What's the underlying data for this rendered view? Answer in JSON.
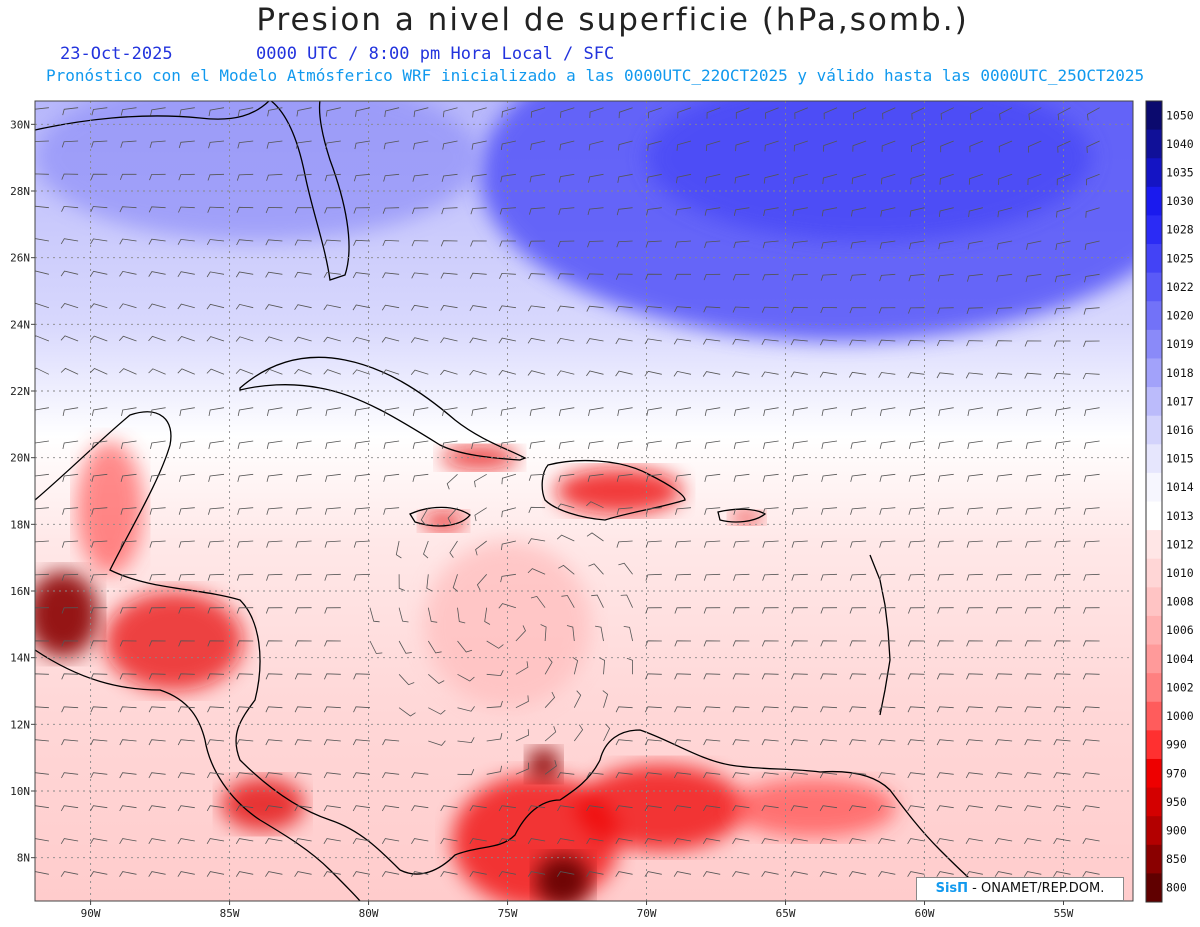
{
  "title": "Presion a nivel de superficie (hPa,somb.)",
  "date": "23-Oct-2025",
  "time_info": "0000 UTC / 8:00 pm Hora Local / SFC",
  "forecast_info": "Pronóstico con el Modelo Atmósferico WRF inicializado a las 0000UTC_22OCT2025 y válido hasta las  0000UTC_25OCT2025",
  "credit": {
    "brand": "SisΠ",
    "text": " - ONAMET/REP.DOM."
  },
  "map": {
    "lon_range": [
      -92,
      -52.5
    ],
    "lat_range": [
      6.7,
      30.7
    ],
    "lat_ticks": [
      "30N",
      "28N",
      "26N",
      "24N",
      "22N",
      "20N",
      "18N",
      "16N",
      "14N",
      "12N",
      "10N",
      "8N"
    ],
    "lon_ticks": [
      "90W",
      "85W",
      "80W",
      "75W",
      "70W",
      "65W",
      "60W",
      "55W"
    ],
    "lat_tick_values": [
      30,
      28,
      26,
      24,
      22,
      20,
      18,
      16,
      14,
      12,
      10,
      8
    ],
    "lon_tick_values": [
      -90,
      -85,
      -80,
      -75,
      -70,
      -65,
      -60,
      -55
    ],
    "grid": true,
    "low_center": {
      "lon": -75,
      "lat": 15.1
    }
  },
  "colorbar": {
    "labels": [
      "1050",
      "1040",
      "1035",
      "1030",
      "1028",
      "1025",
      "1022",
      "1020",
      "1019",
      "1018",
      "1017",
      "1016",
      "1015",
      "1014",
      "1013",
      "1012",
      "1010",
      "1008",
      "1006",
      "1004",
      "1002",
      "1000",
      "990",
      "970",
      "950",
      "900",
      "850",
      "800"
    ],
    "colors": [
      "#0b0a6e",
      "#101098",
      "#1414c4",
      "#1a1aee",
      "#2b2bf5",
      "#4343f6",
      "#5a5af7",
      "#7272f8",
      "#8a8af9",
      "#a2a2fa",
      "#bbbbfb",
      "#d3d3fc",
      "#e6e6fd",
      "#f6f6fe",
      "#ffffff",
      "#ffe6e6",
      "#ffd6d6",
      "#ffc4c4",
      "#ffb0b0",
      "#ff9a9a",
      "#ff8080",
      "#ff5c5c",
      "#ff3030",
      "#ee0000",
      "#d40000",
      "#b30000",
      "#8a0000",
      "#600000"
    ]
  },
  "shading": [
    {
      "name": "north-atlantic-high",
      "lon": -63,
      "lat": 28.5,
      "rx": 13,
      "ry": 5,
      "color": "#5a5af8",
      "opacity": 0.9
    },
    {
      "name": "north-atlantic-high-core",
      "lon": -62,
      "lat": 29,
      "rx": 8,
      "ry": 2.5,
      "color": "#4c4cf6",
      "opacity": 0.9
    },
    {
      "name": "gulf-ridge",
      "lon": -84,
      "lat": 29,
      "rx": 8,
      "ry": 2.5,
      "color": "#9090f8",
      "opacity": 0.7
    },
    {
      "name": "central-low",
      "lon": -75,
      "lat": 15,
      "rx": 3,
      "ry": 2.5,
      "color": "#ffc0c0",
      "opacity": 0.8
    },
    {
      "name": "central-america-high-terrain",
      "lon": -87,
      "lat": 14.5,
      "rx": 2.5,
      "ry": 1.5,
      "color": "#e81010",
      "opacity": 0.75
    },
    {
      "name": "guatemala-high-terrain",
      "lon": -91,
      "lat": 15.3,
      "rx": 1.3,
      "ry": 1.3,
      "color": "#8a0000",
      "opacity": 0.9
    },
    {
      "name": "yucatan-terrain",
      "lon": -89.3,
      "lat": 18.5,
      "rx": 1.2,
      "ry": 2,
      "color": "#ff4040",
      "opacity": 0.6
    },
    {
      "name": "costa-rica-terrain",
      "lon": -83.8,
      "lat": 9.6,
      "rx": 1.5,
      "ry": 0.8,
      "color": "#e00000",
      "opacity": 0.75
    },
    {
      "name": "colombia-terrain",
      "lon": -74,
      "lat": 8.5,
      "rx": 3,
      "ry": 2,
      "color": "#ee0000",
      "opacity": 0.75
    },
    {
      "name": "colombia-andes",
      "lon": -73,
      "lat": 7.3,
      "rx": 1,
      "ry": 0.8,
      "color": "#600000",
      "opacity": 0.9
    },
    {
      "name": "santa-marta",
      "lon": -73.7,
      "lat": 10.8,
      "rx": 0.6,
      "ry": 0.5,
      "color": "#8a0000",
      "opacity": 0.9
    },
    {
      "name": "venezuela-terrain",
      "lon": -69.5,
      "lat": 9.5,
      "rx": 3,
      "ry": 1.3,
      "color": "#ee0000",
      "opacity": 0.75
    },
    {
      "name": "venezuela-coast",
      "lon": -64,
      "lat": 9.5,
      "rx": 3,
      "ry": 0.9,
      "color": "#ff3030",
      "opacity": 0.6
    },
    {
      "name": "hispaniola",
      "lon": -71,
      "lat": 19,
      "rx": 2.3,
      "ry": 0.7,
      "color": "#ee1010",
      "opacity": 0.8
    },
    {
      "name": "cuba-east",
      "lon": -76,
      "lat": 20,
      "rx": 1.4,
      "ry": 0.35,
      "color": "#e81010",
      "opacity": 0.8
    },
    {
      "name": "jamaica",
      "lon": -77.3,
      "lat": 18.1,
      "rx": 0.8,
      "ry": 0.3,
      "color": "#e81010",
      "opacity": 0.8
    },
    {
      "name": "puerto-rico",
      "lon": -66.4,
      "lat": 18.2,
      "rx": 0.6,
      "ry": 0.2,
      "color": "#e81010",
      "opacity": 0.8
    }
  ],
  "pressure_field_note": ""
}
